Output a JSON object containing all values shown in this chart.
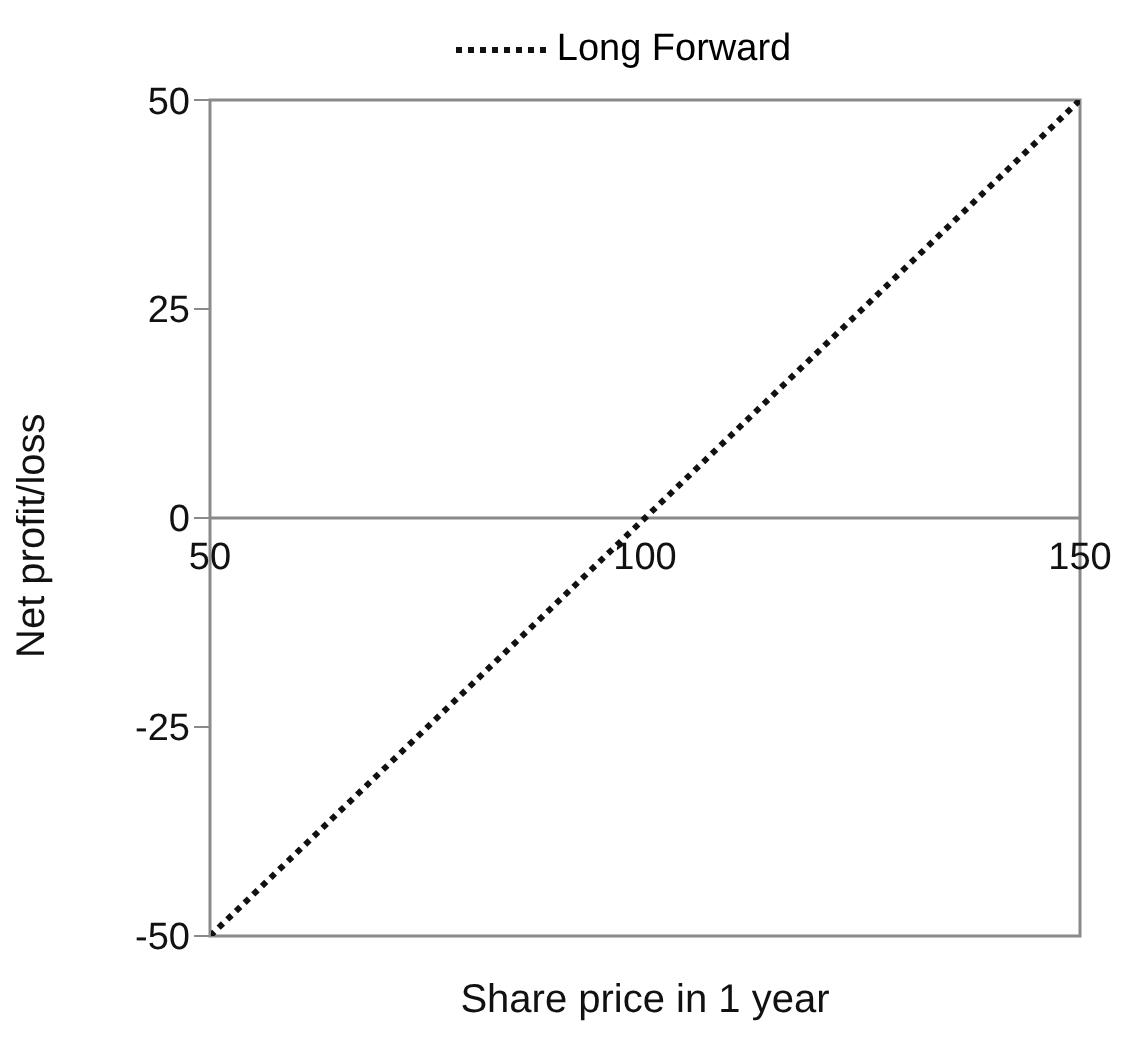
{
  "chart_data": {
    "type": "line",
    "xlabel": "Share price in 1 year",
    "ylabel": "Net profit/loss",
    "series": [
      {
        "name": "Long Forward",
        "color": "#111111",
        "x": [
          50,
          150
        ],
        "values": [
          -50,
          50
        ],
        "line_style": "dotted"
      }
    ],
    "xlim": [
      50,
      150
    ],
    "xticks": [
      50,
      100,
      150
    ],
    "ylim": [
      -50,
      50
    ],
    "yticks": [
      -50,
      -25,
      0,
      25,
      50
    ],
    "legend": "top",
    "grid": false,
    "marker": "none"
  }
}
